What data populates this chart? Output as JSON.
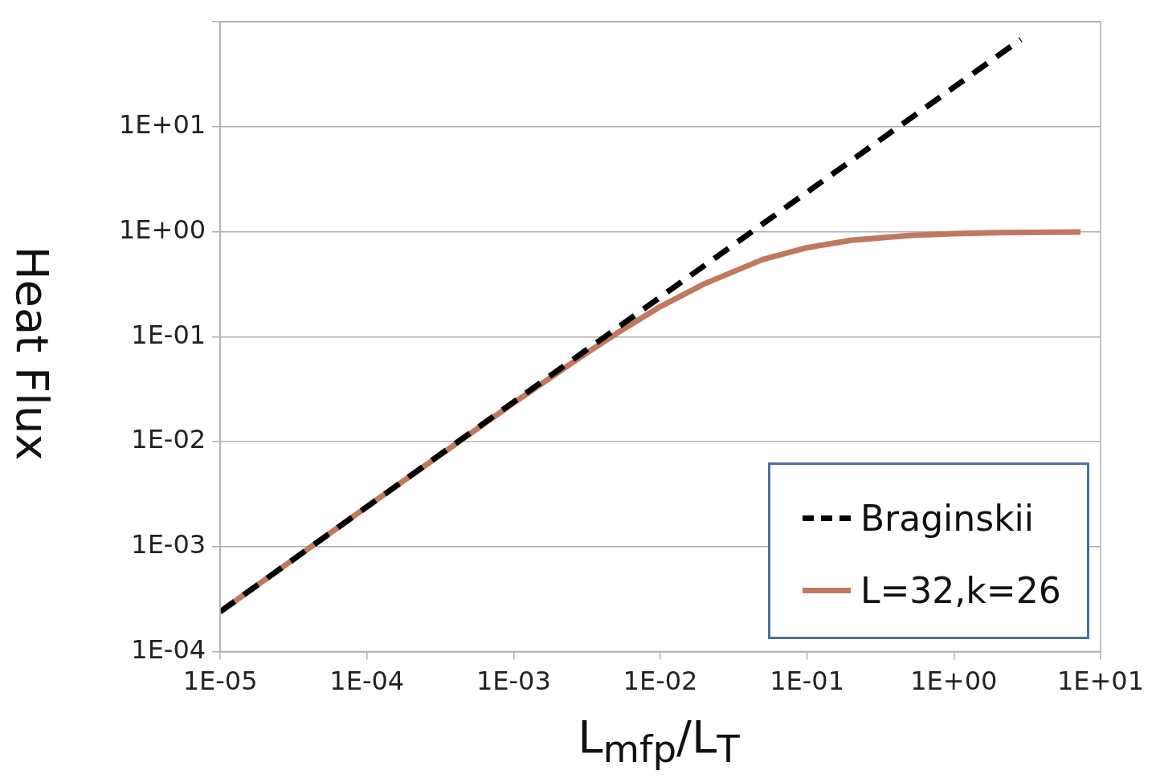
{
  "chart_data": {
    "type": "line",
    "xlabel": "L$_{mfp}$/L$_{T}$",
    "ylabel": "Heat Flux",
    "log": "xy",
    "grid": "y",
    "legend": "bottom right",
    "marker": "none",
    "xlim": [
      1e-05,
      10
    ],
    "ylim": [
      0.0001,
      100
    ],
    "xticks": [
      {
        "value": 1e-05,
        "label": "1E-05"
      },
      {
        "value": 0.0001,
        "label": "1E-04"
      },
      {
        "value": 0.001,
        "label": "1E-03"
      },
      {
        "value": 0.01,
        "label": "1E-02"
      },
      {
        "value": 0.1,
        "label": "1E-01"
      },
      {
        "value": 1,
        "label": "1E+00"
      },
      {
        "value": 10,
        "label": "1E+01"
      }
    ],
    "yticks": [
      {
        "value": 0.0001,
        "label": "1E-04"
      },
      {
        "value": 0.001,
        "label": "1E-03"
      },
      {
        "value": 0.01,
        "label": "1E-02"
      },
      {
        "value": 0.1,
        "label": "1E-01"
      },
      {
        "value": 1,
        "label": "1E+00"
      },
      {
        "value": 10,
        "label": "1E+01"
      },
      {
        "value": 100,
        "label": null
      }
    ],
    "series": [
      {
        "name": "Braginskii",
        "color": "#000000",
        "line_style": "dashed",
        "x": [
          1e-05,
          2.86
        ],
        "values": [
          0.00024,
          68
        ]
      },
      {
        "name": "L=32,k=26",
        "color": "#c0785e",
        "line_style": "solid",
        "x": [
          1e-05,
          0.0001,
          0.001,
          0.003,
          0.005,
          0.01,
          0.02,
          0.05,
          0.1,
          0.2,
          0.5,
          1,
          2,
          7.3
        ],
        "values": [
          0.00024,
          0.0024,
          0.0234,
          0.067,
          0.107,
          0.194,
          0.32,
          0.545,
          0.706,
          0.83,
          0.923,
          0.96,
          0.98,
          0.994
        ]
      }
    ]
  }
}
